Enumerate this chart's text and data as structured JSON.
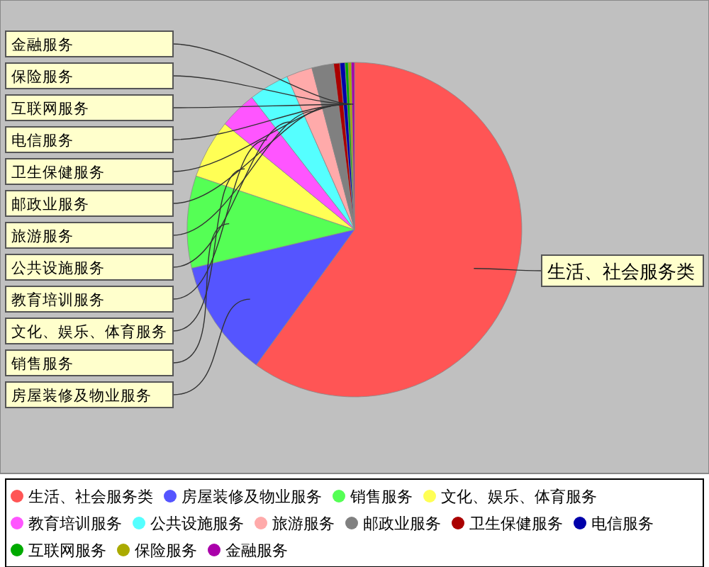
{
  "chart_data": {
    "type": "pie",
    "categories": [
      "生活、社会服务类",
      "房屋装修及物业服务",
      "销售服务",
      "文化、娱乐、体育服务",
      "教育培训服务",
      "公共设施服务",
      "旅游服务",
      "邮政业服务",
      "卫生保健服务",
      "电信服务",
      "互联网服务",
      "保险服务",
      "金融服务"
    ],
    "values": [
      60.0,
      11.3,
      8.9,
      5.7,
      3.6,
      3.9,
      2.5,
      2.1,
      0.6,
      0.5,
      0.3,
      0.3,
      0.3
    ],
    "colors": [
      "#ff5555",
      "#5555ff",
      "#55ff55",
      "#ffff55",
      "#ff55ff",
      "#55ffff",
      "#ffaaaa",
      "#808080",
      "#aa0000",
      "#0000aa",
      "#00aa00",
      "#aaaa00",
      "#aa00aa"
    ],
    "legend": "bottom"
  }
}
